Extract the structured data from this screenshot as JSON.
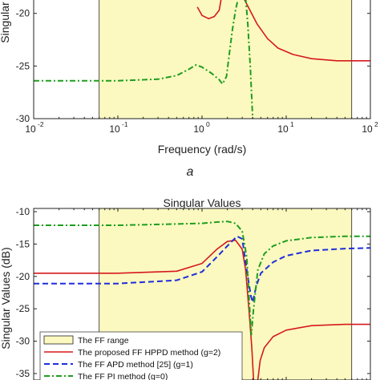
{
  "panel_a": {
    "ylabel": "Singular",
    "xlabel": "Frequency (rad/s)",
    "caption": "a",
    "y_ticks": [
      "-20",
      "-25",
      "-30"
    ],
    "x_ticks": [
      {
        "base": "10",
        "exp": "-2"
      },
      {
        "base": "10",
        "exp": "-1"
      },
      {
        "base": "10",
        "exp": "0"
      },
      {
        "base": "10",
        "exp": "1"
      },
      {
        "base": "10",
        "exp": "2"
      }
    ]
  },
  "panel_b": {
    "title": "Singular Values",
    "ylabel": "Singular Values (dB)",
    "y_ticks": [
      "-10",
      "-15",
      "-20",
      "-25",
      "-30",
      "-35"
    ],
    "legend": [
      "The FF range",
      "The proposed FF HPPD method (g=2)",
      "The FF APD method [25] (g=1)",
      "The FF PI method (g=0)"
    ]
  },
  "colors": {
    "ff_range_fill": "#fbf9c0",
    "hppd": "#d7191c",
    "apd": "#1f2ddb",
    "pi": "#1f9e1f",
    "axis": "#222222"
  },
  "chart_data": [
    {
      "type": "line",
      "xscale": "log",
      "xlim": [
        0.01,
        100
      ],
      "ylim": [
        -30,
        -18.5
      ],
      "xlabel": "Frequency (rad/s)",
      "ylabel": "Singular",
      "shaded_band": {
        "label": "The FF range",
        "x": [
          0.06,
          60
        ]
      },
      "series": [
        {
          "name": "The proposed FF HPPD method (g=2)",
          "style": "solid",
          "segments": [
            [
              [
                0.88,
                -19.4
              ],
              [
                1.0,
                -20.2
              ],
              [
                1.2,
                -20.5
              ],
              [
                1.4,
                -20.3
              ],
              [
                1.6,
                -19.7
              ],
              [
                1.7,
                -18.5
              ]
            ],
            [
              [
                3.1,
                -18.5
              ],
              [
                3.6,
                -19.5
              ],
              [
                4.5,
                -21.0
              ],
              [
                6,
                -22.4
              ],
              [
                8,
                -23.3
              ],
              [
                12,
                -23.9
              ],
              [
                20,
                -24.3
              ],
              [
                40,
                -24.5
              ],
              [
                100,
                -24.5
              ]
            ]
          ]
        },
        {
          "name": "The FF PI method (g=0)",
          "style": "dashdot",
          "segments": [
            [
              [
                0.01,
                -26.4
              ],
              [
                0.1,
                -26.4
              ],
              [
                0.3,
                -26.25
              ],
              [
                0.5,
                -25.9
              ],
              [
                0.7,
                -25.3
              ],
              [
                0.85,
                -24.9
              ],
              [
                1.0,
                -25.1
              ],
              [
                1.3,
                -25.7
              ],
              [
                1.6,
                -26.3
              ],
              [
                1.75,
                -26.7
              ],
              [
                1.95,
                -26.0
              ],
              [
                2.1,
                -24.0
              ],
              [
                2.3,
                -21.5
              ],
              [
                2.5,
                -19.7
              ],
              [
                2.7,
                -18.5
              ]
            ],
            [
              [
                3.3,
                -18.5
              ],
              [
                3.5,
                -21.0
              ],
              [
                3.75,
                -25.2
              ],
              [
                4.0,
                -30.0
              ]
            ]
          ]
        }
      ]
    },
    {
      "type": "line",
      "title": "Singular Values",
      "xscale": "log",
      "xlim": [
        0.01,
        100
      ],
      "ylim": [
        -36,
        -9.5
      ],
      "ylabel": "Singular Values (dB)",
      "shaded_band": {
        "label": "The FF range",
        "x": [
          0.06,
          60
        ]
      },
      "legend_position": "bottom-left",
      "series": [
        {
          "name": "The proposed FF HPPD method (g=2)",
          "style": "solid",
          "segments": [
            [
              [
                0.01,
                -19.5
              ],
              [
                0.1,
                -19.5
              ],
              [
                0.5,
                -19.2
              ],
              [
                1.0,
                -18.0
              ],
              [
                1.5,
                -15.8
              ],
              [
                2.0,
                -14.6
              ],
              [
                2.5,
                -14.4
              ],
              [
                3.0,
                -15.8
              ],
              [
                3.3,
                -19.0
              ],
              [
                3.6,
                -25.0
              ],
              [
                3.9,
                -31.0
              ],
              [
                4.1,
                -36.0
              ]
            ],
            [
              [
                4.6,
                -36.0
              ],
              [
                4.9,
                -33.0
              ],
              [
                5.5,
                -31.0
              ],
              [
                7,
                -29.3
              ],
              [
                10,
                -28.3
              ],
              [
                20,
                -27.6
              ],
              [
                50,
                -27.4
              ],
              [
                100,
                -27.4
              ]
            ]
          ]
        },
        {
          "name": "The FF APD method [25] (g=1)",
          "style": "dashed",
          "segments": [
            [
              [
                0.01,
                -21.1
              ],
              [
                0.1,
                -21.1
              ],
              [
                0.5,
                -20.6
              ],
              [
                1.0,
                -19.3
              ],
              [
                1.5,
                -17.0
              ],
              [
                2.0,
                -15.3
              ],
              [
                2.6,
                -13.8
              ],
              [
                3.0,
                -14.2
              ],
              [
                3.4,
                -19.0
              ],
              [
                3.8,
                -23.0
              ],
              [
                4.0,
                -24.0
              ],
              [
                4.4,
                -21.5
              ],
              [
                5,
                -19.5
              ],
              [
                7,
                -17.8
              ],
              [
                10,
                -16.8
              ],
              [
                20,
                -16.0
              ],
              [
                50,
                -15.7
              ],
              [
                100,
                -15.6
              ]
            ]
          ]
        },
        {
          "name": "The FF PI method (g=0)",
          "style": "dashdot",
          "segments": [
            [
              [
                0.01,
                -12.1
              ],
              [
                0.1,
                -12.1
              ],
              [
                0.5,
                -11.9
              ],
              [
                1.0,
                -11.8
              ],
              [
                1.5,
                -11.6
              ],
              [
                2.0,
                -11.5
              ],
              [
                2.5,
                -11.8
              ],
              [
                3.0,
                -13.0
              ],
              [
                3.4,
                -17.0
              ],
              [
                3.7,
                -25.5
              ],
              [
                3.85,
                -29.0
              ],
              [
                4.1,
                -25.0
              ],
              [
                4.6,
                -19.0
              ],
              [
                5.5,
                -16.5
              ],
              [
                7,
                -15.3
              ],
              [
                10,
                -14.5
              ],
              [
                20,
                -14.0
              ],
              [
                50,
                -13.8
              ],
              [
                100,
                -13.8
              ]
            ]
          ]
        }
      ]
    }
  ]
}
